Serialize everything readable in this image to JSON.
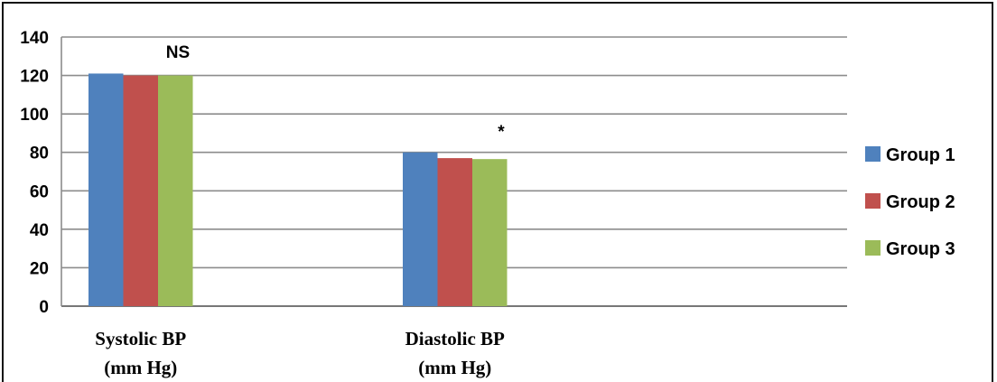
{
  "chart_data": {
    "type": "bar",
    "title": "",
    "xlabel": "",
    "ylabel": "",
    "ylim": [
      0,
      140
    ],
    "yticks": [
      0,
      20,
      40,
      60,
      80,
      100,
      120,
      140
    ],
    "grid": true,
    "legend_position": "right",
    "categories": [
      [
        "Systolic  BP",
        "(mm  Hg)"
      ],
      [
        "Diastolic  BP",
        "(mm  Hg)"
      ]
    ],
    "series": [
      {
        "name": "Group  1",
        "color": "#4f81bd",
        "values": [
          121,
          80
        ]
      },
      {
        "name": "Group  2",
        "color": "#c0504d",
        "values": [
          120,
          77
        ]
      },
      {
        "name": "Group  3",
        "color": "#9bbb59",
        "values": [
          120,
          76.5
        ]
      }
    ],
    "annotations": [
      "NS",
      "*"
    ]
  }
}
